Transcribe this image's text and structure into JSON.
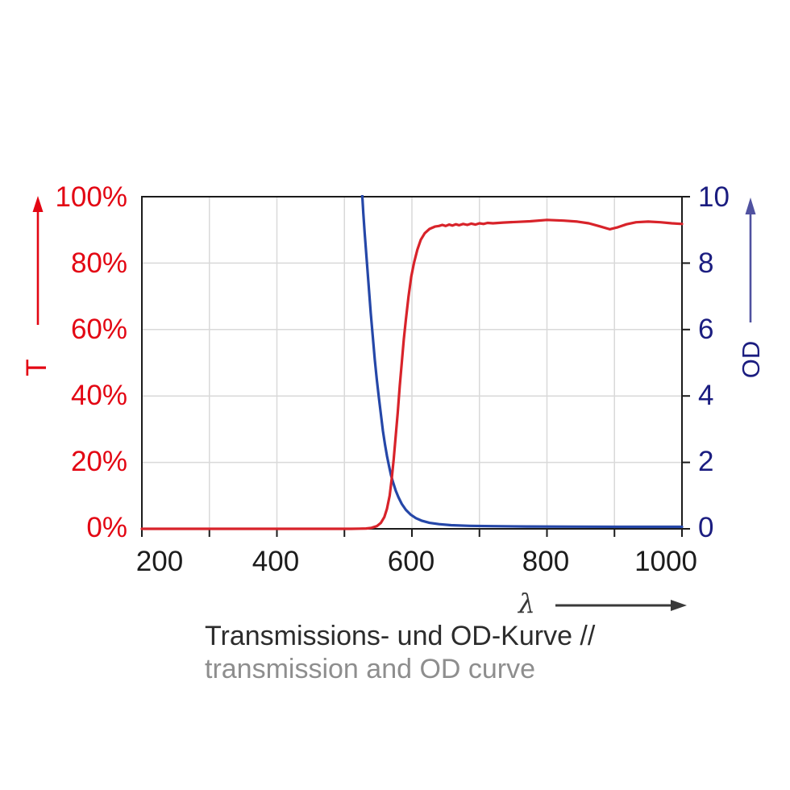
{
  "caption": {
    "line_de": "Transmissions- und OD-Kurve //",
    "line_en": "transmission and OD curve"
  },
  "axes": {
    "t": {
      "label": "T",
      "color": "#e30613",
      "ticks": [
        "100%",
        "80%",
        "60%",
        "40%",
        "20%",
        "0%"
      ]
    },
    "od": {
      "label": "OD",
      "color": "#1b1d80",
      "ticks": [
        "10",
        "8",
        "6",
        "4",
        "2",
        "0"
      ]
    },
    "x": {
      "label": "λ",
      "color": "#1c1c1c",
      "ticks": [
        "200",
        "400",
        "600",
        "800",
        "1000"
      ]
    }
  },
  "colors": {
    "red_text": "#e30613",
    "red_curve": "#d8232a",
    "navy_text": "#1b1d80",
    "navy_curve": "#2547a8",
    "navy_arrow": "#5052a0",
    "grid": "#d9d9d9",
    "frame": "#1b1b1b",
    "lambda_arrow": "#3a3a3a"
  },
  "chart_data": {
    "type": "line",
    "title": "Transmissions- und OD-Kurve // transmission and OD curve",
    "xlabel": "λ",
    "ylabel_left": "T (%)",
    "ylabel_right": "OD",
    "x_range": [
      200,
      1000
    ],
    "x_minor_tick_step": 100,
    "x_labeled_ticks": [
      200,
      400,
      600,
      800,
      1000
    ],
    "grid": true,
    "legend": "none",
    "series": [
      {
        "name": "transmission",
        "axis": "left",
        "unit": "%",
        "ylim": [
          0,
          100
        ],
        "yticks": [
          0,
          20,
          40,
          60,
          80,
          100
        ],
        "color": "#d8232a",
        "points": [
          [
            200,
            0
          ],
          [
            250,
            0
          ],
          [
            300,
            0
          ],
          [
            350,
            0
          ],
          [
            400,
            0
          ],
          [
            450,
            0
          ],
          [
            490,
            0
          ],
          [
            510,
            0
          ],
          [
            522,
            0.05
          ],
          [
            532,
            0.1
          ],
          [
            540,
            0.3
          ],
          [
            548,
            0.8
          ],
          [
            554,
            1.8
          ],
          [
            559,
            3.5
          ],
          [
            563,
            6
          ],
          [
            567,
            10
          ],
          [
            570,
            15
          ],
          [
            573,
            21
          ],
          [
            576,
            28
          ],
          [
            579,
            35
          ],
          [
            582,
            43
          ],
          [
            585,
            50
          ],
          [
            588,
            57
          ],
          [
            591,
            63
          ],
          [
            595,
            70
          ],
          [
            599,
            76
          ],
          [
            603,
            80
          ],
          [
            608,
            84
          ],
          [
            613,
            87
          ],
          [
            619,
            89
          ],
          [
            626,
            90.3
          ],
          [
            634,
            91
          ],
          [
            640,
            91.2
          ],
          [
            645,
            91.5
          ],
          [
            650,
            91.2
          ],
          [
            655,
            91.6
          ],
          [
            660,
            91.3
          ],
          [
            665,
            91.7
          ],
          [
            670,
            91.4
          ],
          [
            676,
            91.8
          ],
          [
            682,
            91.5
          ],
          [
            688,
            91.9
          ],
          [
            694,
            91.6
          ],
          [
            700,
            92
          ],
          [
            706,
            91.8
          ],
          [
            712,
            92.1
          ],
          [
            720,
            92
          ],
          [
            735,
            92.2
          ],
          [
            755,
            92.4
          ],
          [
            775,
            92.6
          ],
          [
            800,
            93
          ],
          [
            825,
            92.8
          ],
          [
            845,
            92.5
          ],
          [
            862,
            92
          ],
          [
            878,
            91.1
          ],
          [
            893,
            90.2
          ],
          [
            905,
            90.8
          ],
          [
            918,
            91.7
          ],
          [
            932,
            92.3
          ],
          [
            950,
            92.5
          ],
          [
            968,
            92.3
          ],
          [
            985,
            92
          ],
          [
            1000,
            91.8
          ]
        ]
      },
      {
        "name": "optical-density",
        "axis": "right",
        "unit": "OD",
        "ylim": [
          0,
          10
        ],
        "yticks": [
          0,
          2,
          4,
          6,
          8,
          10
        ],
        "color": "#2547a8",
        "points": [
          [
            523.5,
            11
          ],
          [
            524,
            10.8
          ],
          [
            526,
            10.2
          ],
          [
            528,
            9.5
          ],
          [
            530,
            8.9
          ],
          [
            533,
            8.1
          ],
          [
            536,
            7.3
          ],
          [
            539,
            6.5
          ],
          [
            542,
            5.8
          ],
          [
            545,
            5.1
          ],
          [
            548,
            4.5
          ],
          [
            551,
            3.95
          ],
          [
            554,
            3.45
          ],
          [
            557,
            2.95
          ],
          [
            560,
            2.55
          ],
          [
            563,
            2.2
          ],
          [
            566,
            1.9
          ],
          [
            569,
            1.62
          ],
          [
            572,
            1.4
          ],
          [
            576,
            1.15
          ],
          [
            580,
            0.95
          ],
          [
            585,
            0.75
          ],
          [
            591,
            0.57
          ],
          [
            598,
            0.43
          ],
          [
            606,
            0.32
          ],
          [
            615,
            0.24
          ],
          [
            626,
            0.18
          ],
          [
            640,
            0.14
          ],
          [
            658,
            0.11
          ],
          [
            685,
            0.09
          ],
          [
            720,
            0.08
          ],
          [
            770,
            0.07
          ],
          [
            840,
            0.065
          ],
          [
            920,
            0.06
          ],
          [
            1000,
            0.06
          ]
        ]
      }
    ]
  }
}
